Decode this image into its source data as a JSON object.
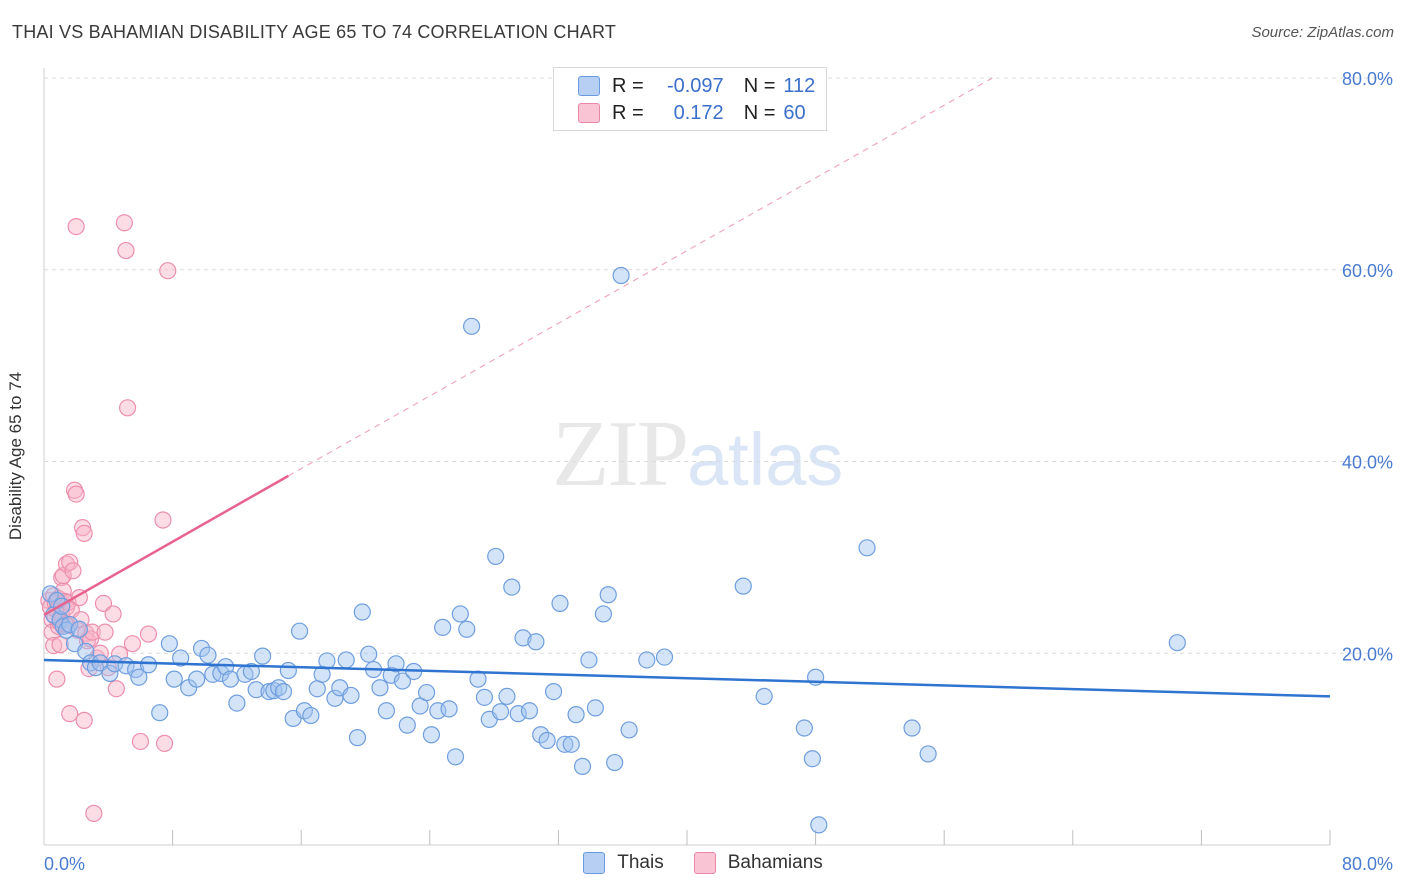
{
  "header": {
    "title": "THAI VS BAHAMIAN DISABILITY AGE 65 TO 74 CORRELATION CHART",
    "source": "Source: ZipAtlas.com"
  },
  "watermark": {
    "zip": "ZIP",
    "atlas": "atlas"
  },
  "legend": {
    "rows": [
      {
        "r_label": "R =",
        "r_value": "-0.097",
        "n_label": "N =",
        "n_value": "112",
        "color": "#b6cff3",
        "border": "#6a9ae0"
      },
      {
        "r_label": "R =",
        "r_value": "0.172",
        "n_label": "N =",
        "n_value": "60",
        "color": "#f9c4d4",
        "border": "#ea87a6"
      }
    ]
  },
  "bottom_legend": {
    "thais": "Thais",
    "bahamians": "Bahamians"
  },
  "colors": {
    "thai_fill": "rgba(160,195,240,0.45)",
    "thai_stroke": "#6f9ede",
    "thai_line": "#2f74d0",
    "baha_fill": "rgba(248,180,200,0.45)",
    "baha_stroke": "#ec8fae",
    "baha_line": "#e8628e",
    "grid": "#dcdcdc",
    "tick_text": "#4a7bd0"
  },
  "chart_data": {
    "type": "scatter",
    "title": "THAI VS BAHAMIAN DISABILITY AGE 65 TO 74 CORRELATION CHART",
    "xlabel": "",
    "ylabel": "Disability Age 65 to 74",
    "xlim": [
      0,
      80
    ],
    "ylim": [
      0,
      80
    ],
    "x_tick_labels": [
      "0.0%",
      "80.0%"
    ],
    "y_ticks": [
      20,
      40,
      60,
      80
    ],
    "y_tick_labels": [
      "20.0%",
      "40.0%",
      "60.0%",
      "80.0%"
    ],
    "grid": true,
    "legend_position": "top-center",
    "series": [
      {
        "name": "Thais",
        "trend": {
          "x0": 0,
          "y0": 19.3,
          "x1": 80,
          "y1": 15.5
        },
        "points": [
          [
            0.4,
            26.2
          ],
          [
            0.6,
            24.0
          ],
          [
            0.8,
            25.5
          ],
          [
            1.0,
            23.5
          ],
          [
            1.2,
            22.8
          ],
          [
            1.4,
            22.4
          ],
          [
            1.6,
            23.0
          ],
          [
            1.9,
            21.0
          ],
          [
            2.2,
            22.5
          ],
          [
            2.6,
            20.2
          ],
          [
            2.9,
            19.0
          ],
          [
            3.2,
            18.5
          ],
          [
            3.5,
            19.0
          ],
          [
            4.1,
            17.9
          ],
          [
            4.4,
            18.9
          ],
          [
            5.1,
            18.7
          ],
          [
            5.7,
            18.3
          ],
          [
            5.9,
            17.5
          ],
          [
            6.5,
            18.8
          ],
          [
            7.2,
            13.8
          ],
          [
            7.8,
            21.0
          ],
          [
            8.1,
            17.3
          ],
          [
            8.5,
            19.5
          ],
          [
            9.0,
            16.4
          ],
          [
            9.5,
            17.3
          ],
          [
            9.8,
            20.5
          ],
          [
            10.2,
            19.8
          ],
          [
            10.5,
            17.8
          ],
          [
            11.0,
            17.9
          ],
          [
            11.3,
            18.6
          ],
          [
            11.6,
            17.3
          ],
          [
            12.0,
            14.8
          ],
          [
            12.5,
            17.8
          ],
          [
            12.9,
            18.1
          ],
          [
            13.2,
            16.2
          ],
          [
            13.6,
            19.7
          ],
          [
            14.0,
            16.0
          ],
          [
            14.3,
            16.1
          ],
          [
            14.6,
            16.4
          ],
          [
            14.9,
            16.0
          ],
          [
            15.2,
            18.2
          ],
          [
            15.5,
            13.2
          ],
          [
            15.9,
            22.3
          ],
          [
            16.2,
            14.0
          ],
          [
            16.6,
            13.5
          ],
          [
            17.0,
            16.3
          ],
          [
            17.3,
            17.8
          ],
          [
            17.6,
            19.2
          ],
          [
            18.1,
            15.3
          ],
          [
            18.4,
            16.4
          ],
          [
            18.8,
            19.3
          ],
          [
            19.1,
            15.6
          ],
          [
            19.5,
            11.2
          ],
          [
            19.8,
            24.3
          ],
          [
            20.2,
            19.9
          ],
          [
            20.5,
            18.3
          ],
          [
            20.9,
            16.4
          ],
          [
            21.3,
            14.0
          ],
          [
            21.6,
            17.7
          ],
          [
            21.9,
            18.9
          ],
          [
            22.3,
            17.1
          ],
          [
            22.6,
            12.5
          ],
          [
            23.0,
            18.1
          ],
          [
            23.4,
            14.5
          ],
          [
            23.8,
            15.9
          ],
          [
            24.1,
            11.5
          ],
          [
            24.5,
            14.0
          ],
          [
            24.8,
            22.7
          ],
          [
            25.2,
            14.2
          ],
          [
            25.6,
            9.2
          ],
          [
            25.9,
            24.1
          ],
          [
            26.3,
            22.5
          ],
          [
            26.6,
            54.1
          ],
          [
            27.0,
            17.3
          ],
          [
            27.4,
            15.4
          ],
          [
            27.7,
            13.1
          ],
          [
            28.1,
            30.1
          ],
          [
            28.4,
            13.9
          ],
          [
            28.8,
            15.5
          ],
          [
            29.1,
            26.9
          ],
          [
            29.5,
            13.7
          ],
          [
            29.8,
            21.6
          ],
          [
            30.2,
            14.0
          ],
          [
            30.6,
            21.2
          ],
          [
            30.9,
            11.5
          ],
          [
            31.3,
            10.9
          ],
          [
            31.7,
            16.0
          ],
          [
            32.1,
            25.2
          ],
          [
            32.4,
            10.5
          ],
          [
            32.8,
            10.5
          ],
          [
            33.1,
            13.6
          ],
          [
            33.5,
            8.2
          ],
          [
            33.9,
            19.3
          ],
          [
            34.3,
            14.3
          ],
          [
            34.8,
            24.1
          ],
          [
            35.1,
            26.1
          ],
          [
            35.5,
            8.6
          ],
          [
            35.9,
            59.4
          ],
          [
            36.4,
            12.0
          ],
          [
            37.5,
            19.3
          ],
          [
            38.6,
            19.6
          ],
          [
            43.5,
            27.0
          ],
          [
            44.8,
            15.5
          ],
          [
            47.3,
            12.2
          ],
          [
            47.8,
            9.0
          ],
          [
            48.0,
            17.5
          ],
          [
            48.2,
            2.1
          ],
          [
            51.2,
            31.0
          ],
          [
            54.0,
            12.2
          ],
          [
            55.0,
            9.5
          ],
          [
            70.5,
            21.1
          ],
          [
            1.1,
            24.9
          ]
        ]
      },
      {
        "name": "Bahamians",
        "trend": {
          "x0": 0,
          "y0": 24.0,
          "x1": 15.2,
          "y1": 38.5
        },
        "trend_dashed": {
          "x0": 15.2,
          "y0": 38.5,
          "x1": 59.0,
          "y1": 80.0
        },
        "points": [
          [
            0.3,
            25.5
          ],
          [
            0.4,
            24.8
          ],
          [
            0.5,
            23.5
          ],
          [
            0.5,
            22.2
          ],
          [
            0.6,
            26.0
          ],
          [
            0.6,
            20.8
          ],
          [
            0.7,
            25.2
          ],
          [
            0.7,
            23.8
          ],
          [
            0.8,
            17.3
          ],
          [
            0.8,
            24.5
          ],
          [
            0.9,
            22.8
          ],
          [
            0.9,
            25.7
          ],
          [
            1.0,
            20.9
          ],
          [
            1.0,
            23.2
          ],
          [
            1.1,
            24.0
          ],
          [
            1.1,
            27.9
          ],
          [
            1.2,
            26.5
          ],
          [
            1.2,
            28.1
          ],
          [
            1.3,
            25.4
          ],
          [
            1.3,
            23.0
          ],
          [
            1.4,
            29.3
          ],
          [
            1.4,
            24.8
          ],
          [
            1.5,
            22.9
          ],
          [
            1.5,
            25.3
          ],
          [
            1.6,
            29.5
          ],
          [
            1.6,
            13.7
          ],
          [
            1.7,
            24.5
          ],
          [
            1.8,
            28.6
          ],
          [
            1.9,
            37.0
          ],
          [
            2.0,
            36.6
          ],
          [
            2.0,
            64.5
          ],
          [
            2.1,
            22.4
          ],
          [
            2.2,
            25.8
          ],
          [
            2.3,
            23.5
          ],
          [
            2.4,
            33.1
          ],
          [
            2.5,
            32.5
          ],
          [
            2.5,
            13.0
          ],
          [
            2.6,
            22.1
          ],
          [
            2.7,
            21.3
          ],
          [
            2.8,
            18.4
          ],
          [
            2.9,
            21.5
          ],
          [
            3.0,
            22.2
          ],
          [
            3.1,
            3.3
          ],
          [
            3.3,
            19.5
          ],
          [
            3.5,
            20.0
          ],
          [
            3.7,
            25.2
          ],
          [
            3.8,
            22.2
          ],
          [
            4.0,
            18.5
          ],
          [
            4.3,
            24.1
          ],
          [
            4.5,
            16.3
          ],
          [
            5.0,
            64.9
          ],
          [
            5.1,
            62.0
          ],
          [
            5.2,
            45.6
          ],
          [
            6.0,
            10.8
          ],
          [
            7.4,
            33.9
          ],
          [
            7.5,
            10.6
          ],
          [
            7.7,
            59.9
          ],
          [
            5.5,
            21.0
          ],
          [
            4.7,
            19.9
          ],
          [
            6.5,
            22.0
          ]
        ]
      }
    ]
  }
}
